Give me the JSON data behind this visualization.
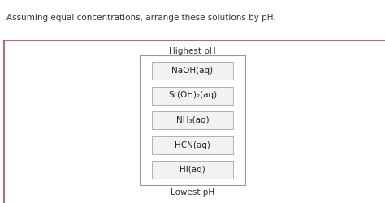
{
  "title_text": "Assuming equal concentrations, arrange these solutions by pH.",
  "highest_label": "Highest pH",
  "lowest_label": "Lowest pH",
  "items": [
    "NaOH(aq)",
    "Sr(OH)₂(aq)",
    "NH₃(aq)",
    "HCN(aq)",
    "HI(aq)"
  ],
  "background_color": "#ffffff",
  "border_color": "#c0474a",
  "box_border_color": "#b0b0b0",
  "box_bg_color": "#f2f2f2",
  "inner_box_border": "#999999",
  "inner_box_bg": "#ffffff",
  "title_fontsize": 7.5,
  "item_fontsize": 7.5,
  "label_fontsize": 7.5
}
